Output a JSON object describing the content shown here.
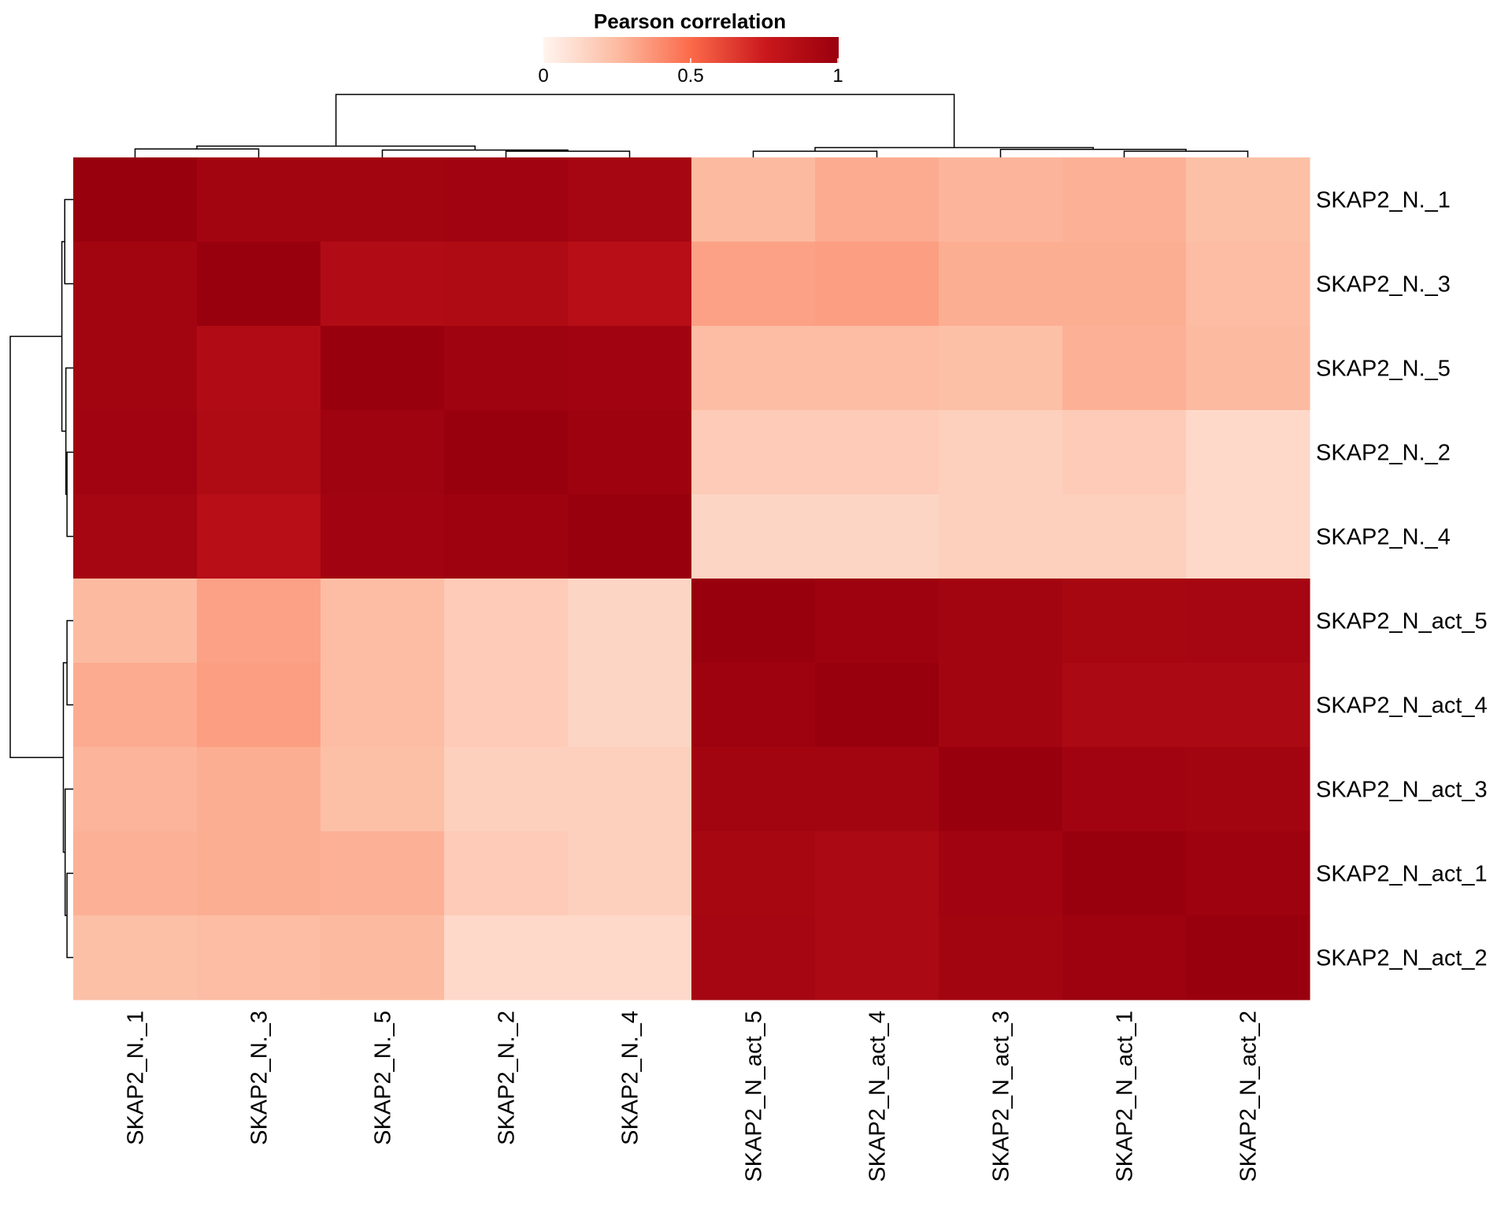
{
  "chart_data": {
    "type": "heatmap",
    "title": "",
    "legend": {
      "title": "Pearson correlation",
      "placement": "top-center",
      "ticks": [
        "0",
        "0.5",
        "1"
      ],
      "tick_values": [
        0,
        0.5,
        1
      ],
      "range": [
        0,
        1
      ]
    },
    "colorscale": [
      "#fff5f0",
      "#fcbba1",
      "#fb6a4a",
      "#cb181d",
      "#99000d"
    ],
    "rows": [
      "SKAP2_N._1",
      "SKAP2_N._3",
      "SKAP2_N._5",
      "SKAP2_N._2",
      "SKAP2_N._4",
      "SKAP2_N_act_5",
      "SKAP2_N_act_4",
      "SKAP2_N_act_3",
      "SKAP2_N_act_1",
      "SKAP2_N_act_2"
    ],
    "columns": [
      "SKAP2_N._1",
      "SKAP2_N._3",
      "SKAP2_N._5",
      "SKAP2_N._2",
      "SKAP2_N._4",
      "SKAP2_N_act_5",
      "SKAP2_N_act_4",
      "SKAP2_N_act_3",
      "SKAP2_N_act_1",
      "SKAP2_N_act_2"
    ],
    "values": [
      [
        1.0,
        0.95,
        0.95,
        0.96,
        0.94,
        0.25,
        0.3,
        0.27,
        0.28,
        0.23
      ],
      [
        0.95,
        1.0,
        0.88,
        0.89,
        0.85,
        0.33,
        0.34,
        0.29,
        0.29,
        0.24
      ],
      [
        0.95,
        0.88,
        1.0,
        0.97,
        0.96,
        0.24,
        0.24,
        0.23,
        0.28,
        0.25
      ],
      [
        0.96,
        0.89,
        0.97,
        1.0,
        0.98,
        0.18,
        0.18,
        0.16,
        0.18,
        0.12
      ],
      [
        0.94,
        0.85,
        0.96,
        0.98,
        1.0,
        0.14,
        0.14,
        0.16,
        0.16,
        0.12
      ],
      [
        0.25,
        0.33,
        0.24,
        0.18,
        0.14,
        1.0,
        0.98,
        0.95,
        0.93,
        0.94
      ],
      [
        0.3,
        0.34,
        0.24,
        0.18,
        0.14,
        0.98,
        1.0,
        0.95,
        0.91,
        0.91
      ],
      [
        0.27,
        0.29,
        0.23,
        0.16,
        0.16,
        0.95,
        0.95,
        1.0,
        0.96,
        0.95
      ],
      [
        0.28,
        0.29,
        0.28,
        0.18,
        0.16,
        0.93,
        0.91,
        0.96,
        1.0,
        0.98
      ],
      [
        0.23,
        0.24,
        0.25,
        0.12,
        0.12,
        0.94,
        0.91,
        0.95,
        0.98,
        1.0
      ]
    ],
    "row_dendrogram": true,
    "column_dendrogram": true,
    "grid": false
  }
}
